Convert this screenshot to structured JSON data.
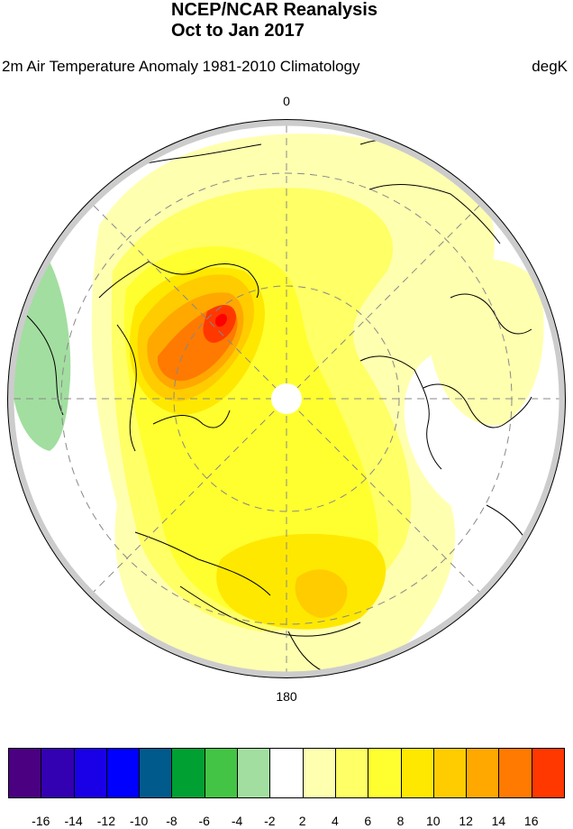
{
  "header": {
    "title_line1": "NCEP/NCAR Reanalysis",
    "title_line2": "Oct to Jan 2017",
    "subtitle": "2m Air Temperature Anomaly  1981-2010 Climatology",
    "units": "degK"
  },
  "map": {
    "projection": "north-polar-stereographic",
    "lon_label_top": "0",
    "lon_label_bottom": "180",
    "gridlines": "dashed",
    "colors": {
      "neg4": "#a2dea0",
      "pos2": "#ffffb0",
      "pos4": "#ffff66",
      "pos6": "#ffff30",
      "pos8": "#ffe800",
      "pos10": "#ffcc00",
      "pos12": "#ffa800",
      "pos14": "#ff7a00",
      "pos16": "#ff3800",
      "pos18": "#ff0000",
      "rim": "#cccccc"
    }
  },
  "colorbar": {
    "colors": [
      "#4b0082",
      "#3300b2",
      "#1a00e6",
      "#0000ff",
      "#005a8c",
      "#00a033",
      "#44c444",
      "#a2dea0",
      "#ffffff",
      "#ffffb0",
      "#ffff66",
      "#ffff30",
      "#ffe800",
      "#ffcc00",
      "#ffa800",
      "#ff7a00",
      "#ff3800"
    ],
    "labels": [
      "-16",
      "-14",
      "-12",
      "-10",
      "-8",
      "-6",
      "-4",
      "-2",
      "2",
      "4",
      "6",
      "8",
      "10",
      "12",
      "14",
      "16"
    ]
  }
}
